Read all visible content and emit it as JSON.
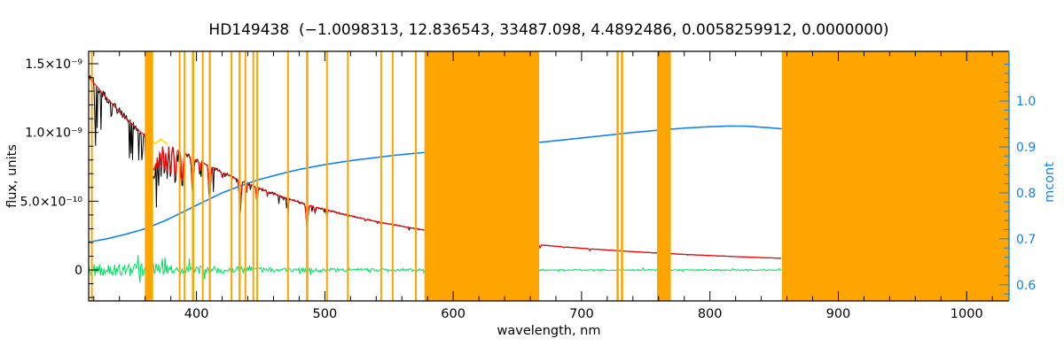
{
  "chart_data": {
    "type": "line",
    "title": "HD149438  (−1.0098313, 12.836543, 33487.098, 4.4892486, 0.0058259912, 0.0000000)",
    "star": "HD149438",
    "params": [
      -1.0098313,
      12.836543,
      33487.098,
      4.4892486,
      0.0058259912,
      0.0
    ],
    "xlabel": "wavelength, nm",
    "ylabel_left": "flux, units",
    "ylabel_right": "mcont",
    "xlim": [
      316,
      1033
    ],
    "flux_lim": [
      -0.225,
      1.59
    ],
    "flux_unit": "1e-9",
    "mcont_lim": [
      0.565,
      1.108
    ],
    "x_ticks": {
      "major": [
        400,
        500,
        600,
        700,
        800,
        900,
        1000
      ],
      "labels": [
        "400",
        "500",
        "600",
        "700",
        "800",
        "900",
        "1000"
      ],
      "minor_step": 20
    },
    "flux_ticks": {
      "major": [
        0,
        0.5,
        1.0,
        1.5
      ],
      "labels": [
        "0",
        "5.0×10⁻¹⁰",
        "1.0×10⁻⁹",
        "1.5×10⁻⁹"
      ],
      "minor_step": 0.1
    },
    "mcont_ticks": {
      "major": [
        0.6,
        0.7,
        0.8,
        0.9,
        1.0
      ],
      "labels": [
        "0.6",
        "0.7",
        "0.8",
        "0.9",
        "1.0"
      ],
      "minor_step": 0.02
    },
    "legend": "none",
    "grid": false,
    "colors": {
      "observed": "#000000",
      "fit": "#ff0000",
      "fit_masked": "#ffd800",
      "residual": "#00e060",
      "mcont": "#0f82f0",
      "masked_band": "#ffa500",
      "frame": "#000000",
      "background": "#ffffff"
    },
    "series": {
      "spectrum_range": [
        316,
        856
      ],
      "noise_seed": 20240917,
      "continuum": [
        [
          316,
          1.4
        ],
        [
          320,
          1.36
        ],
        [
          325,
          1.305
        ],
        [
          330,
          1.25
        ],
        [
          335,
          1.2
        ],
        [
          340,
          1.15
        ],
        [
          345,
          1.105
        ],
        [
          350,
          1.06
        ],
        [
          355,
          1.015
        ],
        [
          360,
          0.975
        ],
        [
          364,
          0.945
        ],
        [
          368,
          0.92
        ],
        [
          372,
          0.95
        ],
        [
          376,
          0.925
        ],
        [
          380,
          0.9
        ],
        [
          385,
          0.875
        ],
        [
          390,
          0.85
        ],
        [
          395,
          0.825
        ],
        [
          400,
          0.8
        ],
        [
          410,
          0.755
        ],
        [
          420,
          0.71
        ],
        [
          430,
          0.668
        ],
        [
          440,
          0.627
        ],
        [
          450,
          0.59
        ],
        [
          460,
          0.555
        ],
        [
          470,
          0.523
        ],
        [
          480,
          0.493
        ],
        [
          490,
          0.465
        ],
        [
          500,
          0.44
        ],
        [
          510,
          0.416
        ],
        [
          520,
          0.394
        ],
        [
          530,
          0.373
        ],
        [
          540,
          0.353
        ],
        [
          550,
          0.335
        ],
        [
          560,
          0.318
        ],
        [
          570,
          0.302
        ],
        [
          578,
          0.29
        ],
        [
          590,
          0.272
        ],
        [
          610,
          0.245
        ],
        [
          630,
          0.221
        ],
        [
          650,
          0.2
        ],
        [
          667,
          0.183
        ],
        [
          680,
          0.172
        ],
        [
          700,
          0.158
        ],
        [
          720,
          0.145
        ],
        [
          740,
          0.133
        ],
        [
          760,
          0.123
        ],
        [
          780,
          0.113
        ],
        [
          800,
          0.105
        ],
        [
          820,
          0.097
        ],
        [
          840,
          0.09
        ],
        [
          856,
          0.085
        ]
      ],
      "absorption_lines": [
        [
          365.0,
          0.18,
          0.7
        ],
        [
          366.1,
          0.2,
          0.7
        ],
        [
          367.3,
          0.21,
          0.7
        ],
        [
          368.7,
          0.2,
          0.7
        ],
        [
          370.4,
          0.22,
          0.8
        ],
        [
          372.5,
          0.22,
          0.8
        ],
        [
          375.0,
          0.23,
          0.8
        ],
        [
          377.1,
          0.22,
          0.8
        ],
        [
          379.8,
          0.23,
          0.8
        ],
        [
          383.5,
          0.24,
          0.9
        ],
        [
          388.9,
          0.26,
          0.9
        ],
        [
          397.0,
          0.27,
          1.0
        ],
        [
          402.6,
          0.1,
          0.6
        ],
        [
          410.2,
          0.28,
          1.0
        ],
        [
          420.0,
          0.05,
          0.5
        ],
        [
          434.0,
          0.3,
          1.0
        ],
        [
          438.8,
          0.1,
          0.6
        ],
        [
          447.1,
          0.16,
          0.7
        ],
        [
          455.3,
          0.05,
          0.5
        ],
        [
          471.3,
          0.09,
          0.6
        ],
        [
          486.1,
          0.3,
          1.0
        ],
        [
          492.2,
          0.09,
          0.6
        ],
        [
          501.6,
          0.08,
          0.6
        ],
        [
          518.0,
          0.05,
          0.5
        ],
        [
          531.6,
          0.04,
          0.5
        ],
        [
          543.8,
          0.05,
          0.5
        ],
        [
          553.0,
          0.04,
          0.5
        ],
        [
          587.6,
          0.12,
          0.7
        ],
        [
          656.3,
          0.3,
          1.0
        ],
        [
          667.8,
          0.1,
          0.6
        ],
        [
          686.0,
          0.04,
          0.5
        ],
        [
          706.5,
          0.07,
          0.6
        ],
        [
          728.1,
          0.05,
          0.5
        ]
      ],
      "fit_masked_segment": [
        361,
        377.6
      ],
      "mcont": [
        [
          316,
          0.693
        ],
        [
          330,
          0.7
        ],
        [
          345,
          0.71
        ],
        [
          360,
          0.722
        ],
        [
          375,
          0.739
        ],
        [
          390,
          0.759
        ],
        [
          405,
          0.78
        ],
        [
          420,
          0.8
        ],
        [
          435,
          0.816
        ],
        [
          450,
          0.83
        ],
        [
          465,
          0.841
        ],
        [
          480,
          0.851
        ],
        [
          495,
          0.859
        ],
        [
          510,
          0.866
        ],
        [
          525,
          0.872
        ],
        [
          540,
          0.877
        ],
        [
          555,
          0.882
        ],
        [
          570,
          0.886
        ],
        [
          578,
          0.888
        ],
        [
          600,
          0.895
        ],
        [
          630,
          0.902
        ],
        [
          660,
          0.908
        ],
        [
          680,
          0.9135
        ],
        [
          700,
          0.9195
        ],
        [
          720,
          0.9255
        ],
        [
          740,
          0.9315
        ],
        [
          760,
          0.9365
        ],
        [
          780,
          0.941
        ],
        [
          800,
          0.944
        ],
        [
          815,
          0.9455
        ],
        [
          830,
          0.945
        ],
        [
          845,
          0.942
        ],
        [
          856,
          0.9395
        ]
      ],
      "residual_amplitude": [
        [
          316,
          0.05
        ],
        [
          330,
          0.046
        ],
        [
          345,
          0.042
        ],
        [
          360,
          0.05
        ],
        [
          375,
          0.045
        ],
        [
          390,
          0.035
        ],
        [
          410,
          0.028
        ],
        [
          430,
          0.024
        ],
        [
          450,
          0.02
        ],
        [
          470,
          0.017
        ],
        [
          500,
          0.014
        ],
        [
          530,
          0.012
        ],
        [
          560,
          0.011
        ],
        [
          578,
          0.01
        ],
        [
          667,
          0.0065
        ],
        [
          700,
          0.006
        ],
        [
          760,
          0.0055
        ],
        [
          856,
          0.005
        ]
      ]
    },
    "masked_regions_nm": [
      [
        317.8,
        319.2
      ],
      [
        359.8,
        366.2
      ],
      [
        386.2,
        387.6
      ],
      [
        390.0,
        391.4
      ],
      [
        396.4,
        398.2
      ],
      [
        404.2,
        405.6
      ],
      [
        409.6,
        411.2
      ],
      [
        426.6,
        428.0
      ],
      [
        432.8,
        434.4
      ],
      [
        437.4,
        438.8
      ],
      [
        443.6,
        445.0
      ],
      [
        446.6,
        448.0
      ],
      [
        470.6,
        472.0
      ],
      [
        485.4,
        487.2
      ],
      [
        501.0,
        502.4
      ],
      [
        517.2,
        518.6
      ],
      [
        543.2,
        544.6
      ],
      [
        552.2,
        553.6
      ],
      [
        570.2,
        571.6
      ],
      [
        577.6,
        667.0
      ],
      [
        727.2,
        729.0
      ],
      [
        730.6,
        732.4
      ],
      [
        758.8,
        769.6
      ],
      [
        856.0,
        1033.0
      ]
    ]
  }
}
